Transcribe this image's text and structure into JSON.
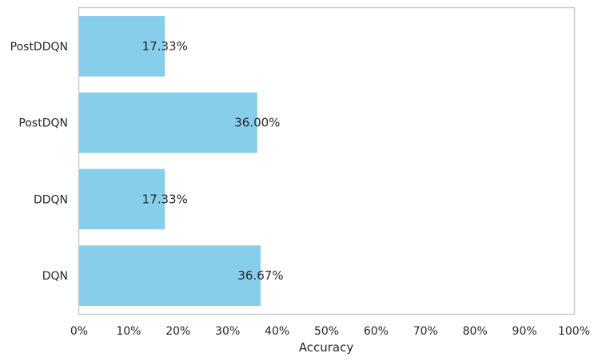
{
  "chart_data": {
    "type": "bar",
    "orientation": "horizontal",
    "categories": [
      "DQN",
      "DDQN",
      "PostDQN",
      "PostDDQN"
    ],
    "values": [
      36.67,
      17.33,
      36.0,
      17.33
    ],
    "data_labels": [
      "36.67%",
      "17.33%",
      "36.00%",
      "17.33%"
    ],
    "title": "",
    "xlabel": "Accuracy",
    "ylabel": "",
    "xlim": [
      0,
      100
    ],
    "x_ticks": [
      0,
      10,
      20,
      30,
      40,
      50,
      60,
      70,
      80,
      90,
      100
    ],
    "x_tick_labels": [
      "0%",
      "10%",
      "20%",
      "30%",
      "40%",
      "50%",
      "60%",
      "70%",
      "80%",
      "90%",
      "100%"
    ],
    "grid": false,
    "legend": "none",
    "colors": {
      "bar": "#87ceeb",
      "frame": "#cccccc",
      "text": "#262626"
    }
  }
}
